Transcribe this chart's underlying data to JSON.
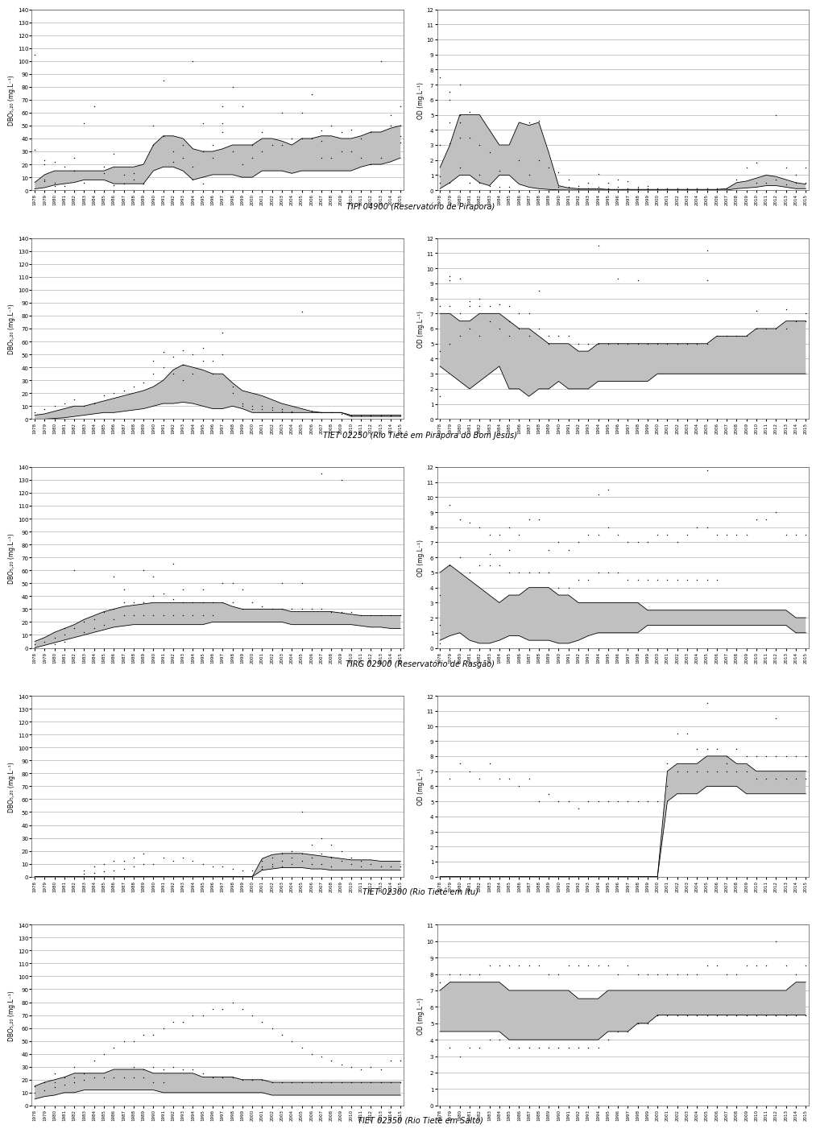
{
  "stations": [
    "TIPI 04900 (Reservatório de Pirapora)",
    "TIET 02250 (Rio Tietê em Pirapora do Bom Jesus)",
    "TIRG 02900 (Reservatório de Rasgão)",
    "TIET 02300 (Rio Tietê em Itu)",
    "TIET 02350 (Rio Tietê em Salto)"
  ],
  "year_start": 1978,
  "year_end": 2015,
  "dbo_ylabel": "DBO₅,₂₀ (mg.L⁻¹)",
  "od_ylabel": "OD (mg.L⁻¹)",
  "bg_color": "#ffffff",
  "band_color": "#c0c0c0",
  "grid_color": "#b0b0b0",
  "dot_color": "#000000",
  "line_color": "#000000"
}
